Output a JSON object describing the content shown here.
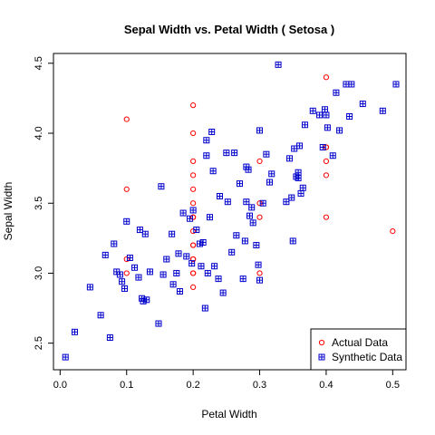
{
  "chart_data": {
    "type": "scatter",
    "title": "Sepal Width  vs.  Petal Width  ( Setosa )",
    "xlabel": "Petal Width",
    "ylabel": "Sepal Width",
    "xlim": [
      -0.01,
      0.52
    ],
    "ylim": [
      2.31,
      4.57
    ],
    "x_ticks": [
      "0.0",
      "0.1",
      "0.2",
      "0.3",
      "0.4",
      "0.5"
    ],
    "y_ticks": [
      "2.5",
      "3.0",
      "3.5",
      "4.0",
      "4.5"
    ],
    "grid": false,
    "legend_position": "bottom-right",
    "series": [
      {
        "name": "Actual Data",
        "marker": "circle",
        "color": "#ff0000",
        "x": [
          0.1,
          0.1,
          0.1,
          0.1,
          0.2,
          0.2,
          0.2,
          0.2,
          0.2,
          0.2,
          0.2,
          0.2,
          0.2,
          0.2,
          0.2,
          0.2,
          0.2,
          0.2,
          0.2,
          0.2,
          0.3,
          0.3,
          0.3,
          0.3,
          0.4,
          0.4,
          0.4,
          0.4,
          0.4,
          0.4,
          0.5
        ],
        "y": [
          4.1,
          3.6,
          3.1,
          3.0,
          4.2,
          4.0,
          3.8,
          3.7,
          3.6,
          3.5,
          3.4,
          3.3,
          3.2,
          3.1,
          3.0,
          2.9,
          3.2,
          3.4,
          3.1,
          3.0,
          3.8,
          3.5,
          3.0,
          3.4,
          4.4,
          3.9,
          3.8,
          3.7,
          3.4,
          3.9,
          3.3
        ]
      },
      {
        "name": "Synthetic Data",
        "marker": "boxed-plus",
        "color": "#0000cc",
        "x": [
          0.008,
          0.022,
          0.045,
          0.061,
          0.068,
          0.075,
          0.081,
          0.085,
          0.09,
          0.093,
          0.097,
          0.1,
          0.105,
          0.112,
          0.118,
          0.12,
          0.123,
          0.125,
          0.128,
          0.13,
          0.135,
          0.148,
          0.152,
          0.155,
          0.16,
          0.168,
          0.17,
          0.175,
          0.178,
          0.18,
          0.185,
          0.19,
          0.195,
          0.198,
          0.2,
          0.205,
          0.21,
          0.212,
          0.215,
          0.218,
          0.22,
          0.222,
          0.225,
          0.228,
          0.23,
          0.232,
          0.238,
          0.24,
          0.245,
          0.25,
          0.252,
          0.258,
          0.262,
          0.265,
          0.27,
          0.275,
          0.278,
          0.28,
          0.283,
          0.285,
          0.288,
          0.29,
          0.295,
          0.298,
          0.3,
          0.305,
          0.31,
          0.315,
          0.318,
          0.328,
          0.34,
          0.345,
          0.348,
          0.35,
          0.352,
          0.355,
          0.358,
          0.36,
          0.362,
          0.365,
          0.368,
          0.38,
          0.39,
          0.395,
          0.398,
          0.4,
          0.402,
          0.41,
          0.415,
          0.42,
          0.43,
          0.435,
          0.438,
          0.455,
          0.485,
          0.505,
          0.22,
          0.28,
          0.3,
          0.358
        ],
        "y": [
          2.4,
          2.58,
          2.9,
          2.7,
          3.13,
          2.54,
          3.21,
          3.01,
          2.99,
          2.94,
          2.89,
          3.37,
          3.11,
          3.04,
          2.97,
          3.31,
          2.82,
          2.8,
          3.28,
          2.81,
          3.01,
          2.64,
          3.62,
          2.99,
          3.1,
          3.28,
          2.92,
          3.0,
          3.14,
          2.87,
          3.43,
          3.12,
          3.39,
          3.07,
          3.45,
          3.31,
          3.21,
          3.05,
          3.22,
          2.75,
          3.84,
          3.0,
          3.4,
          4.01,
          3.73,
          3.05,
          2.96,
          3.55,
          2.86,
          3.86,
          3.51,
          3.15,
          3.86,
          3.27,
          3.64,
          2.96,
          3.23,
          3.76,
          3.74,
          3.41,
          3.47,
          3.36,
          3.2,
          3.06,
          4.02,
          3.5,
          3.85,
          3.65,
          3.71,
          4.49,
          3.51,
          3.82,
          3.54,
          3.23,
          3.89,
          3.69,
          3.68,
          3.91,
          3.57,
          3.61,
          4.06,
          4.16,
          4.13,
          3.9,
          4.17,
          4.13,
          4.04,
          3.84,
          4.29,
          4.02,
          4.35,
          4.12,
          4.35,
          4.21,
          4.16,
          4.35,
          3.95,
          3.51,
          2.95,
          3.72
        ]
      }
    ]
  }
}
